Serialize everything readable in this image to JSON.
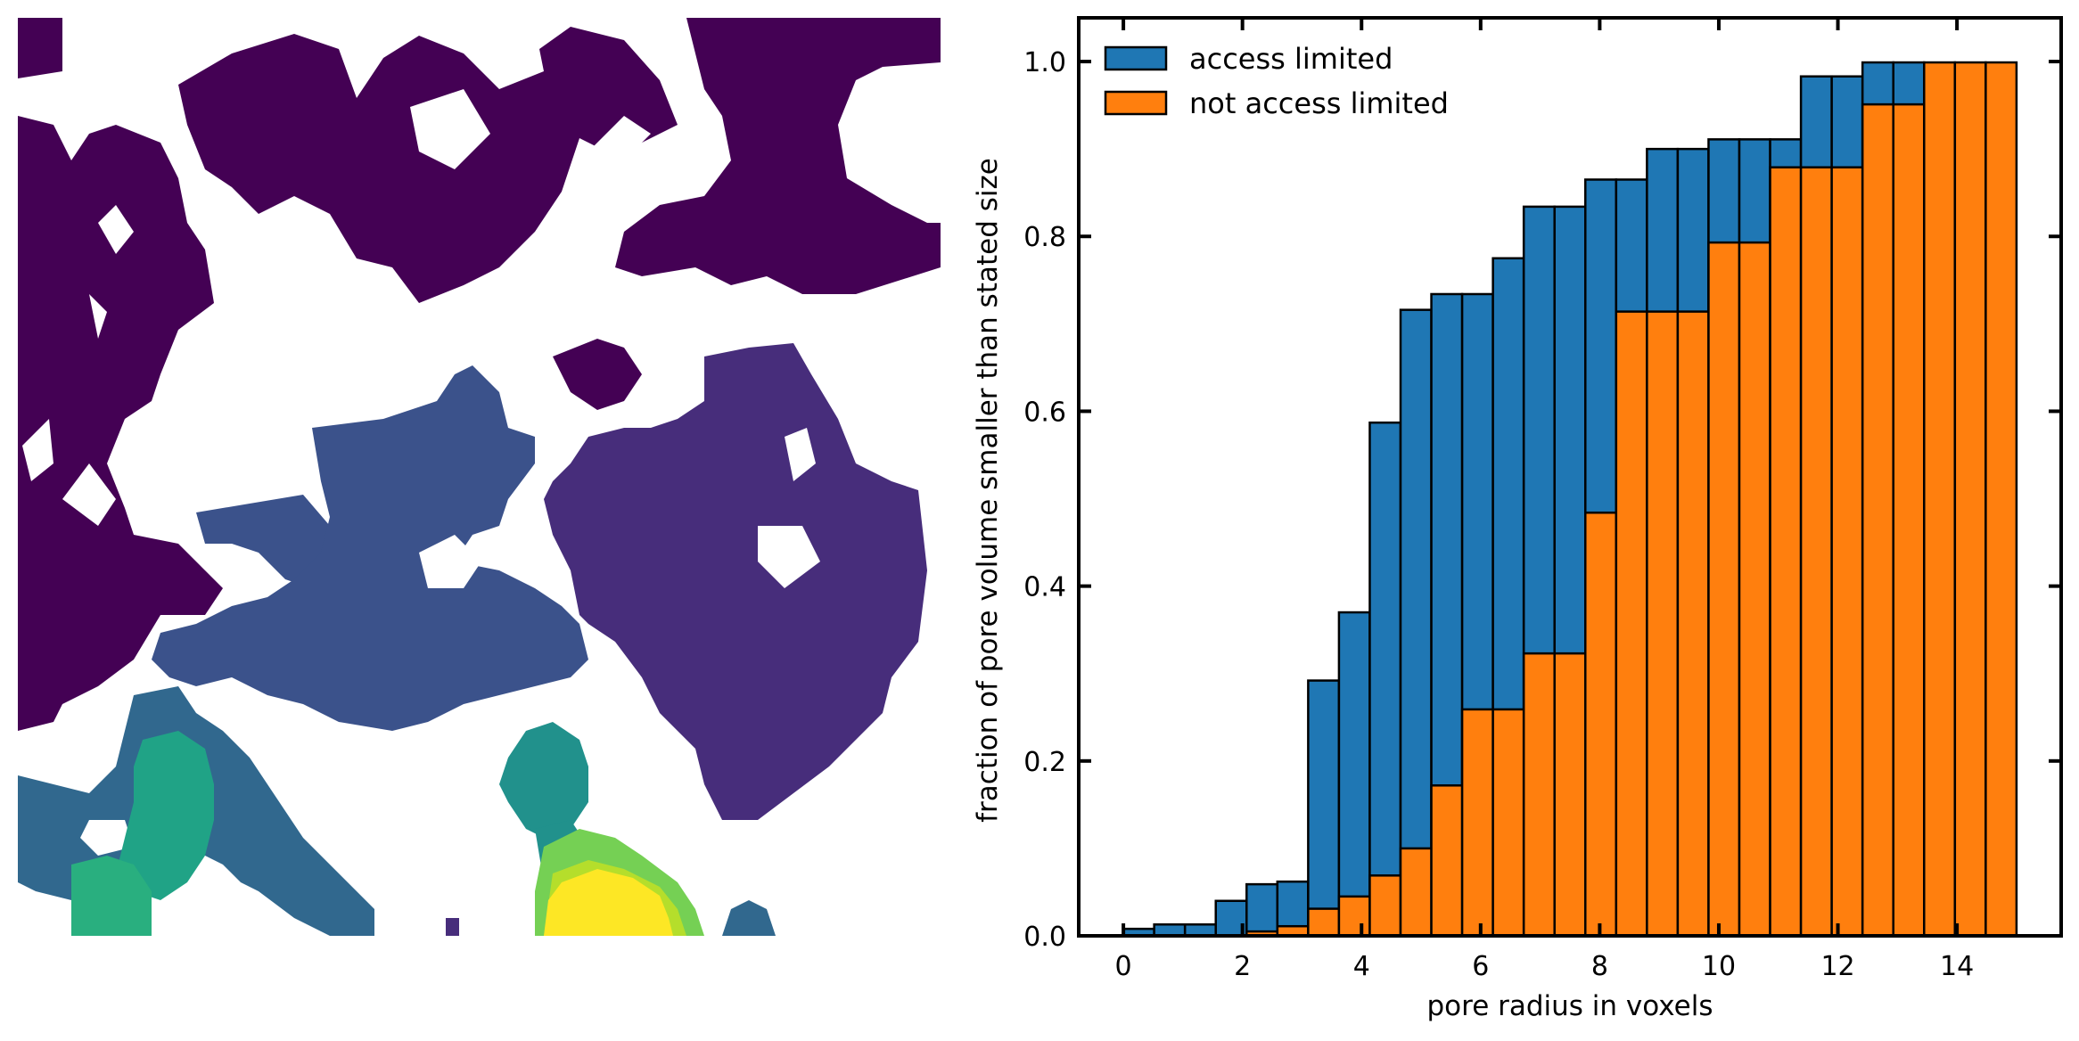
{
  "panels": {
    "left": {
      "type": "segmented-pore-map",
      "colormap": "viridis",
      "background": "#ffffff"
    }
  },
  "chart_data": {
    "type": "bar",
    "subtype": "cumulative histogram (overlaid)",
    "title": "",
    "xlabel": "pore radius in voxels",
    "ylabel": "fraction of pore volume smaller than stated size",
    "xlim": [
      -0.75,
      15.75
    ],
    "ylim": [
      0,
      1.05
    ],
    "xticks": [
      0,
      2,
      4,
      6,
      8,
      10,
      12,
      14
    ],
    "yticks": [
      0.0,
      0.2,
      0.4,
      0.6,
      0.8,
      1.0
    ],
    "xtick_labels": [
      "0",
      "2",
      "4",
      "6",
      "8",
      "10",
      "12",
      "14"
    ],
    "ytick_labels": [
      "0.0",
      "0.2",
      "0.4",
      "0.6",
      "0.8",
      "1.0"
    ],
    "bin_edges": [
      0.0,
      0.5172,
      1.0345,
      1.5517,
      2.069,
      2.5862,
      3.1034,
      3.6207,
      4.1379,
      4.6552,
      5.1724,
      5.6897,
      6.2069,
      6.7241,
      7.2414,
      7.7586,
      8.2759,
      8.7931,
      9.3103,
      9.8276,
      10.3448,
      10.8621,
      11.3793,
      11.8966,
      12.4138,
      12.931,
      13.4483,
      13.9655,
      14.4828,
      15.0
    ],
    "legend": {
      "position": "top-left",
      "entries": [
        "access limited",
        "not access limited"
      ]
    },
    "series": [
      {
        "name": "access limited",
        "color": "#1f77b4",
        "range": [
          0.0,
          13.448
        ],
        "values": [
          0.008,
          0.013,
          0.013,
          0.04,
          0.059,
          0.062,
          0.292,
          0.37,
          0.587,
          0.716,
          0.734,
          0.734,
          0.775,
          0.834,
          0.834,
          0.865,
          0.865,
          0.9,
          0.9,
          0.911,
          0.911,
          0.911,
          0.983,
          0.983,
          0.999,
          0.999
        ]
      },
      {
        "name": "not access limited",
        "color": "#ff7f0e",
        "range": [
          0.0,
          15.0
        ],
        "values": [
          0.0,
          0.0,
          0.0,
          0.0,
          0.005,
          0.011,
          0.031,
          0.045,
          0.069,
          0.1,
          0.172,
          0.259,
          0.259,
          0.323,
          0.323,
          0.484,
          0.714,
          0.714,
          0.714,
          0.793,
          0.793,
          0.879,
          0.879,
          0.879,
          0.951,
          0.951,
          0.999,
          0.999,
          0.999
        ]
      }
    ]
  }
}
